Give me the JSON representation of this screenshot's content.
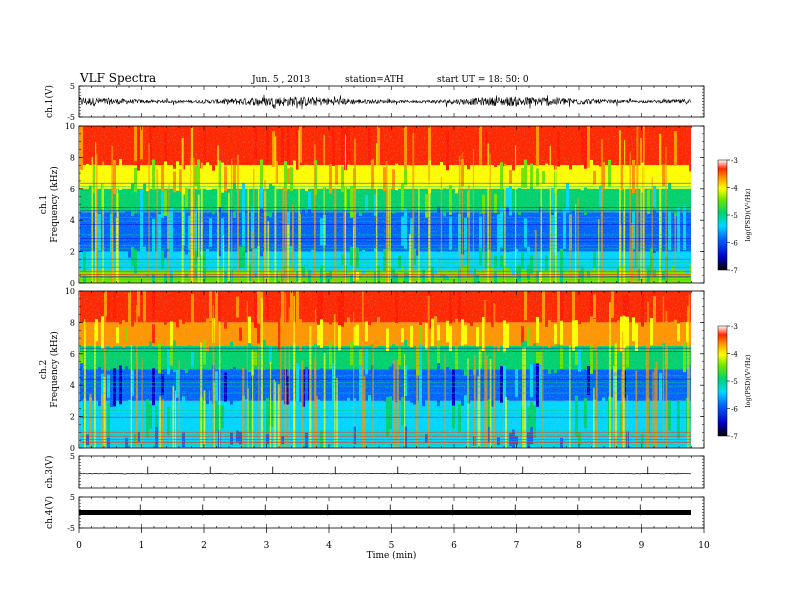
{
  "header": {
    "title": "VLF  Spectra",
    "date": "Jun. 5  , 2013",
    "station": "station=ATH",
    "start": "start  UT =   18: 50: 0"
  },
  "chart_data": [
    {
      "type": "line",
      "panel": "ch1-waveform",
      "ylabel": "ch.1(V)",
      "ylim": [
        -5,
        5
      ],
      "yticks": [
        "5",
        "-5"
      ],
      "signal": "dense noise waveform, amplitude about ±1 V, centered near 0 V",
      "color": "#000000"
    },
    {
      "type": "heatmap",
      "panel": "ch1-spectrogram",
      "ylabel_channel": "ch.1",
      "ylabel": "Frequency  (kHz)",
      "ylim": [
        0,
        10
      ],
      "yticks": [
        "0",
        "2",
        "4",
        "6",
        "8",
        "10"
      ],
      "colorbar": {
        "label": "log(PSD)(V²/Hz)",
        "range": [
          -7,
          -3
        ],
        "ticks": [
          "-3",
          "-4",
          "-5",
          "-6",
          "-7"
        ]
      },
      "bands": [
        {
          "from": 7.5,
          "to": 10.0,
          "level": -3.3
        },
        {
          "from": 6.0,
          "to": 7.5,
          "level": -4.2
        },
        {
          "from": 4.5,
          "to": 6.0,
          "level": -5.0
        },
        {
          "from": 2.0,
          "to": 4.5,
          "level": -5.8
        },
        {
          "from": 0.8,
          "to": 2.0,
          "level": -5.3
        },
        {
          "from": 0.0,
          "to": 0.8,
          "level": -4.8
        }
      ]
    },
    {
      "type": "heatmap",
      "panel": "ch2-spectrogram",
      "ylabel_channel": "ch.2",
      "ylabel": "Frequency  (kHz)",
      "ylim": [
        0,
        10
      ],
      "yticks": [
        "0",
        "2",
        "4",
        "6",
        "8",
        "10"
      ],
      "colorbar": {
        "label": "log(PSD)(V²/Hz)",
        "range": [
          -7,
          -3
        ],
        "ticks": [
          "-3",
          "-4",
          "-5",
          "-6",
          "-7"
        ]
      },
      "bands": [
        {
          "from": 8.0,
          "to": 10.0,
          "level": -3.4
        },
        {
          "from": 6.5,
          "to": 8.0,
          "level": -4.0
        },
        {
          "from": 5.0,
          "to": 6.5,
          "level": -4.9
        },
        {
          "from": 3.0,
          "to": 5.0,
          "level": -6.0
        },
        {
          "from": 1.0,
          "to": 3.0,
          "level": -5.3
        },
        {
          "from": 0.0,
          "to": 1.0,
          "level": -5.6
        }
      ]
    },
    {
      "type": "line",
      "panel": "ch3-waveform",
      "ylabel": "ch.3(V)",
      "ylim": [
        -5,
        5
      ],
      "yticks": [
        "5"
      ],
      "baseline": -0.5,
      "spikes_min": [
        1.1,
        2.1,
        3.1,
        4.1,
        5.1,
        6.1,
        7.1,
        8.1,
        9.1
      ],
      "color": "#000000"
    },
    {
      "type": "line",
      "panel": "ch4-waveform",
      "ylabel": "ch.4(V)",
      "ylim": [
        -5,
        5
      ],
      "yticks": [
        "5",
        "-5"
      ],
      "baseline": 0,
      "color": "#000000"
    }
  ],
  "xaxis": {
    "label": "Time  (min)",
    "xlim": [
      0,
      10
    ],
    "ticks": [
      "0",
      "1",
      "2",
      "3",
      "4",
      "5",
      "6",
      "7",
      "8",
      "9",
      "10"
    ]
  }
}
